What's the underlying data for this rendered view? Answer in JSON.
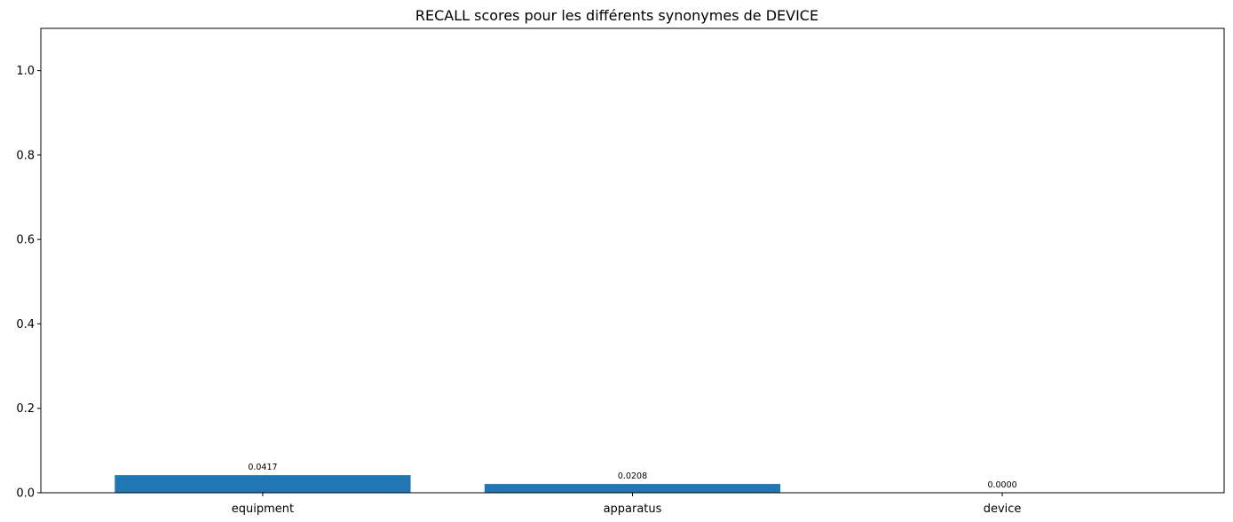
{
  "chart_data": {
    "type": "bar",
    "title": "RECALL scores pour les différents synonymes de DEVICE",
    "xlabel": "",
    "ylabel": "",
    "categories": [
      "equipment",
      "apparatus",
      "device"
    ],
    "values": [
      0.0417,
      0.0208,
      0.0
    ],
    "value_labels": [
      "0.0417",
      "0.0208",
      "0.0000"
    ],
    "ylim": [
      0,
      1.1
    ],
    "yticks": [
      0.0,
      0.2,
      0.4,
      0.6,
      0.8,
      1.0
    ],
    "ytick_labels": [
      "0.0",
      "0.2",
      "0.4",
      "0.6",
      "0.8",
      "1.0"
    ],
    "grid": false,
    "bar_color": "#1f77b4"
  }
}
